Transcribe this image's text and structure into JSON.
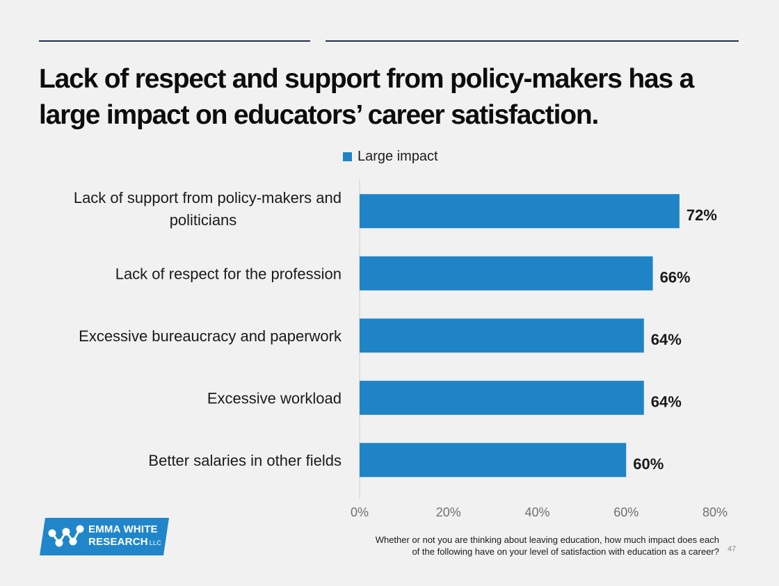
{
  "slide": {
    "title_lines": [
      "Lack of respect and support from policy-makers has a",
      "large impact on educators’ career satisfaction."
    ],
    "footnote_lines": [
      "Whether or not you are thinking about leaving education, how much impact does each",
      "of the following have on your level of satisfaction with education as a career?"
    ],
    "page_number": "47"
  },
  "logo": {
    "line1": "EMMA WHITE",
    "line2": "RESEARCH",
    "suffix": "LLC",
    "bg_color": "#2186c9",
    "icon": "connected-nodes-w-icon"
  },
  "colors": {
    "bar": "#1f84c6",
    "rule": "#1f3050",
    "axis": "#d0d0d0"
  },
  "chart_data": {
    "type": "bar",
    "orientation": "horizontal",
    "legend": {
      "position": "top",
      "entries": [
        "Large impact"
      ]
    },
    "categories": [
      [
        "Lack of support from policy-makers and",
        "politicians"
      ],
      [
        "Lack of respect for the profession"
      ],
      [
        "Excessive bureaucracy and paperwork"
      ],
      [
        "Excessive workload"
      ],
      [
        "Better salaries in other fields"
      ]
    ],
    "series": [
      {
        "name": "Large impact",
        "values": [
          72,
          66,
          64,
          64,
          60
        ]
      }
    ],
    "data_labels": [
      "72%",
      "66%",
      "64%",
      "64%",
      "60%"
    ],
    "x_ticks": [
      0,
      20,
      40,
      60,
      80
    ],
    "x_tick_labels": [
      "0%",
      "20%",
      "40%",
      "60%",
      "80%"
    ],
    "xlim": [
      0,
      80
    ],
    "grid": false
  }
}
